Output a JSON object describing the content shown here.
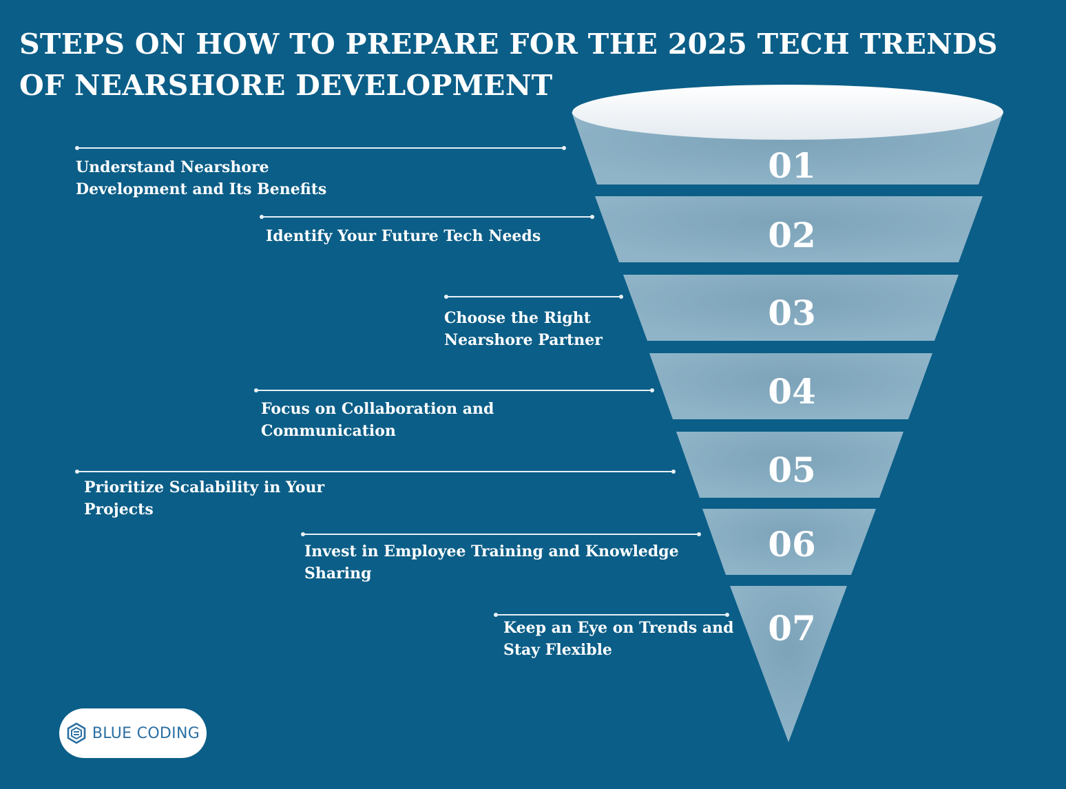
{
  "title": "STEPS ON HOW TO PREPARE FOR THE 2025 TECH TRENDS OF NEARSHORE DEVELOPMENT",
  "steps": [
    {
      "number": "01",
      "label": "Understand Nearshore\nDevelopment and Its Benefits"
    },
    {
      "number": "02",
      "label": "Identify Your Future Tech Needs"
    },
    {
      "number": "03",
      "label": "Choose the Right\nNearshore Partner"
    },
    {
      "number": "04",
      "label": "Focus on Collaboration and\nCommunication"
    },
    {
      "number": "05",
      "label": "Prioritize Scalability in Your\nProjects"
    },
    {
      "number": "06",
      "label": "Invest in Employee Training and Knowledge\nSharing"
    },
    {
      "number": "07",
      "label": "Keep an Eye on Trends and\nStay Flexible"
    }
  ],
  "logo": {
    "text": "BLUE CODING",
    "icon": "hexagon-logo-icon"
  },
  "colors": {
    "background": "#0b5e87",
    "funnel": "#8ab0c5",
    "text": "#ffffff"
  }
}
